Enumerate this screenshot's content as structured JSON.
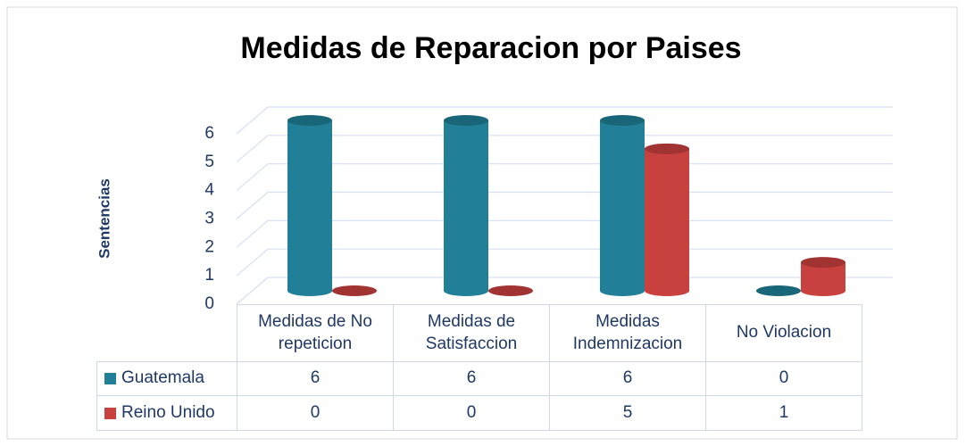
{
  "chart_data": {
    "type": "bar3d",
    "title": "Medidas de Reparacion por Paises",
    "y_label": "Sentencias",
    "categories": [
      "Medidas de No repeticion",
      "Medidas de Satisfaccion",
      "Medidas Indemnizacion",
      "No Violacion"
    ],
    "series": [
      {
        "name": "Guatemala",
        "color": "#217f97",
        "values": [
          6,
          6,
          6,
          0
        ]
      },
      {
        "name": "Reino Unido",
        "color": "#c9413e",
        "values": [
          0,
          0,
          5,
          1
        ]
      }
    ],
    "ylim": [
      0,
      6
    ],
    "yticks": [
      0,
      1,
      2,
      3,
      4,
      5,
      6
    ],
    "grid": true
  }
}
